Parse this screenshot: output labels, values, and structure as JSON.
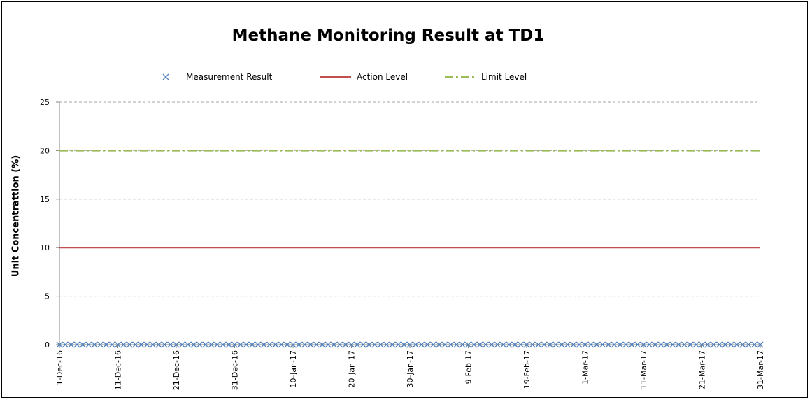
{
  "chart_data": {
    "type": "line",
    "title": "Methane Monitoring Result at TD1",
    "ylabel": "Unit Concentrattion (%)",
    "xlabel": "",
    "ylim": [
      0,
      25
    ],
    "yticks": [
      0,
      5,
      10,
      15,
      20,
      25
    ],
    "xlim": [
      "2016-12-01",
      "2017-03-31"
    ],
    "xticks": [
      "1-Dec-16",
      "11-Dec-16",
      "21-Dec-16",
      "31-Dec-16",
      "10-Jan-17",
      "20-Jan-17",
      "30-Jan-17",
      "9-Feb-17",
      "19-Feb-17",
      "1-Mar-17",
      "11-Mar-17",
      "21-Mar-17",
      "31-Mar-17"
    ],
    "grid": "horizontal dashed",
    "legend_position": "top",
    "series": [
      {
        "name": "Measurement Result",
        "type": "scatter",
        "marker": "x",
        "color": "#4f81bd",
        "x": [
          "2016-12-01",
          "2016-12-02",
          "2016-12-03",
          "2016-12-04",
          "2016-12-05",
          "2016-12-06",
          "2016-12-07",
          "2016-12-08",
          "2016-12-09",
          "2016-12-10",
          "2016-12-11",
          "2016-12-12",
          "2016-12-13",
          "2016-12-14",
          "2016-12-15",
          "2016-12-16",
          "2016-12-17",
          "2016-12-18",
          "2016-12-19",
          "2016-12-20",
          "2016-12-21",
          "2016-12-22",
          "2016-12-23",
          "2016-12-24",
          "2016-12-25",
          "2016-12-26",
          "2016-12-27",
          "2016-12-28",
          "2016-12-29",
          "2016-12-30",
          "2016-12-31",
          "2017-01-01",
          "2017-01-02",
          "2017-01-03",
          "2017-01-04",
          "2017-01-05",
          "2017-01-06",
          "2017-01-07",
          "2017-01-08",
          "2017-01-09",
          "2017-01-10",
          "2017-01-11",
          "2017-01-12",
          "2017-01-13",
          "2017-01-14",
          "2017-01-15",
          "2017-01-16",
          "2017-01-17",
          "2017-01-18",
          "2017-01-19",
          "2017-01-20",
          "2017-01-21",
          "2017-01-22",
          "2017-01-23",
          "2017-01-24",
          "2017-01-25",
          "2017-01-26",
          "2017-01-27",
          "2017-01-28",
          "2017-01-29",
          "2017-01-30",
          "2017-01-31",
          "2017-02-01",
          "2017-02-02",
          "2017-02-03",
          "2017-02-04",
          "2017-02-05",
          "2017-02-06",
          "2017-02-07",
          "2017-02-08",
          "2017-02-09",
          "2017-02-10",
          "2017-02-11",
          "2017-02-12",
          "2017-02-13",
          "2017-02-14",
          "2017-02-15",
          "2017-02-16",
          "2017-02-17",
          "2017-02-18",
          "2017-02-19",
          "2017-02-20",
          "2017-02-21",
          "2017-02-22",
          "2017-02-23",
          "2017-02-24",
          "2017-02-25",
          "2017-02-26",
          "2017-02-27",
          "2017-02-28",
          "2017-03-01",
          "2017-03-02",
          "2017-03-03",
          "2017-03-04",
          "2017-03-05",
          "2017-03-06",
          "2017-03-07",
          "2017-03-08",
          "2017-03-09",
          "2017-03-10",
          "2017-03-11",
          "2017-03-12",
          "2017-03-13",
          "2017-03-14",
          "2017-03-15",
          "2017-03-16",
          "2017-03-17",
          "2017-03-18",
          "2017-03-19",
          "2017-03-20",
          "2017-03-21",
          "2017-03-22",
          "2017-03-23",
          "2017-03-24",
          "2017-03-25",
          "2017-03-26",
          "2017-03-27",
          "2017-03-28",
          "2017-03-29",
          "2017-03-30",
          "2017-03-31"
        ],
        "y": [
          0,
          0,
          0,
          0,
          0,
          0,
          0,
          0,
          0,
          0,
          0,
          0,
          0,
          0,
          0,
          0,
          0,
          0,
          0,
          0,
          0,
          0,
          0,
          0,
          0,
          0,
          0,
          0,
          0,
          0,
          0,
          0,
          0,
          0,
          0,
          0,
          0,
          0,
          0,
          0,
          0,
          0,
          0,
          0,
          0,
          0,
          0,
          0,
          0,
          0,
          0,
          0,
          0,
          0,
          0,
          0,
          0,
          0,
          0,
          0,
          0,
          0,
          0,
          0,
          0,
          0,
          0,
          0,
          0,
          0,
          0,
          0,
          0,
          0,
          0,
          0,
          0,
          0,
          0,
          0,
          0,
          0,
          0,
          0,
          0,
          0,
          0,
          0,
          0,
          0,
          0,
          0,
          0,
          0,
          0,
          0,
          0,
          0,
          0,
          0,
          0,
          0,
          0,
          0,
          0,
          0,
          0,
          0,
          0,
          0,
          0,
          0,
          0,
          0,
          0,
          0,
          0,
          0,
          0,
          0,
          0
        ]
      },
      {
        "name": "Action Level",
        "type": "line",
        "style": "solid",
        "color": "#c0504d",
        "x": [
          "2016-12-01",
          "2017-03-31"
        ],
        "y": [
          10,
          10
        ]
      },
      {
        "name": "Limit Level",
        "type": "line",
        "style": "dash-dot",
        "color": "#9bbb59",
        "x": [
          "2016-12-01",
          "2017-03-31"
        ],
        "y": [
          20,
          20
        ]
      }
    ]
  }
}
